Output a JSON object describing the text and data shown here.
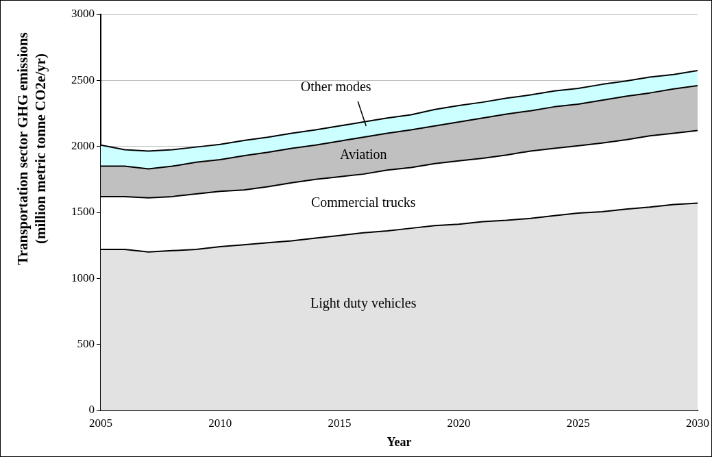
{
  "chart_data": {
    "type": "area",
    "stacked": true,
    "xlabel": "Year",
    "ylabel": "Transportation sector GHG emissions (million metric tonne CO2e/yr)",
    "x": [
      2005,
      2006,
      2007,
      2008,
      2009,
      2010,
      2011,
      2012,
      2013,
      2014,
      2015,
      2016,
      2017,
      2018,
      2019,
      2020,
      2021,
      2022,
      2023,
      2024,
      2025,
      2026,
      2027,
      2028,
      2029,
      2030
    ],
    "xlim": [
      2005,
      2030
    ],
    "xticks": [
      2005,
      2010,
      2015,
      2020,
      2025,
      2030
    ],
    "ylim": [
      0,
      3000
    ],
    "yticks": [
      0,
      500,
      1000,
      1500,
      2000,
      2500,
      3000
    ],
    "grid": "y",
    "legend": false,
    "series": [
      {
        "name": "Light duty vehicles",
        "color": "#e2e2e2",
        "values": [
          1220,
          1220,
          1200,
          1210,
          1220,
          1240,
          1255,
          1270,
          1285,
          1305,
          1325,
          1345,
          1360,
          1380,
          1400,
          1410,
          1430,
          1440,
          1455,
          1475,
          1495,
          1505,
          1525,
          1540,
          1560,
          1570
        ]
      },
      {
        "name": "Commercial trucks",
        "color": "#ffffff",
        "values": [
          400,
          400,
          410,
          410,
          420,
          420,
          415,
          425,
          440,
          445,
          445,
          445,
          460,
          460,
          470,
          480,
          480,
          495,
          510,
          510,
          510,
          520,
          525,
          540,
          540,
          550
        ]
      },
      {
        "name": "Aviation",
        "color": "#c0c0c0",
        "values": [
          230,
          230,
          220,
          230,
          240,
          240,
          260,
          260,
          260,
          260,
          270,
          280,
          280,
          285,
          285,
          295,
          305,
          310,
          305,
          315,
          315,
          325,
          330,
          325,
          335,
          340
        ]
      },
      {
        "name": "Other modes",
        "color": "#ccffff",
        "values": [
          160,
          125,
          135,
          125,
          115,
          115,
          115,
          115,
          115,
          115,
          115,
          115,
          115,
          115,
          125,
          125,
          120,
          120,
          120,
          120,
          120,
          120,
          115,
          120,
          110,
          115
        ]
      }
    ]
  }
}
